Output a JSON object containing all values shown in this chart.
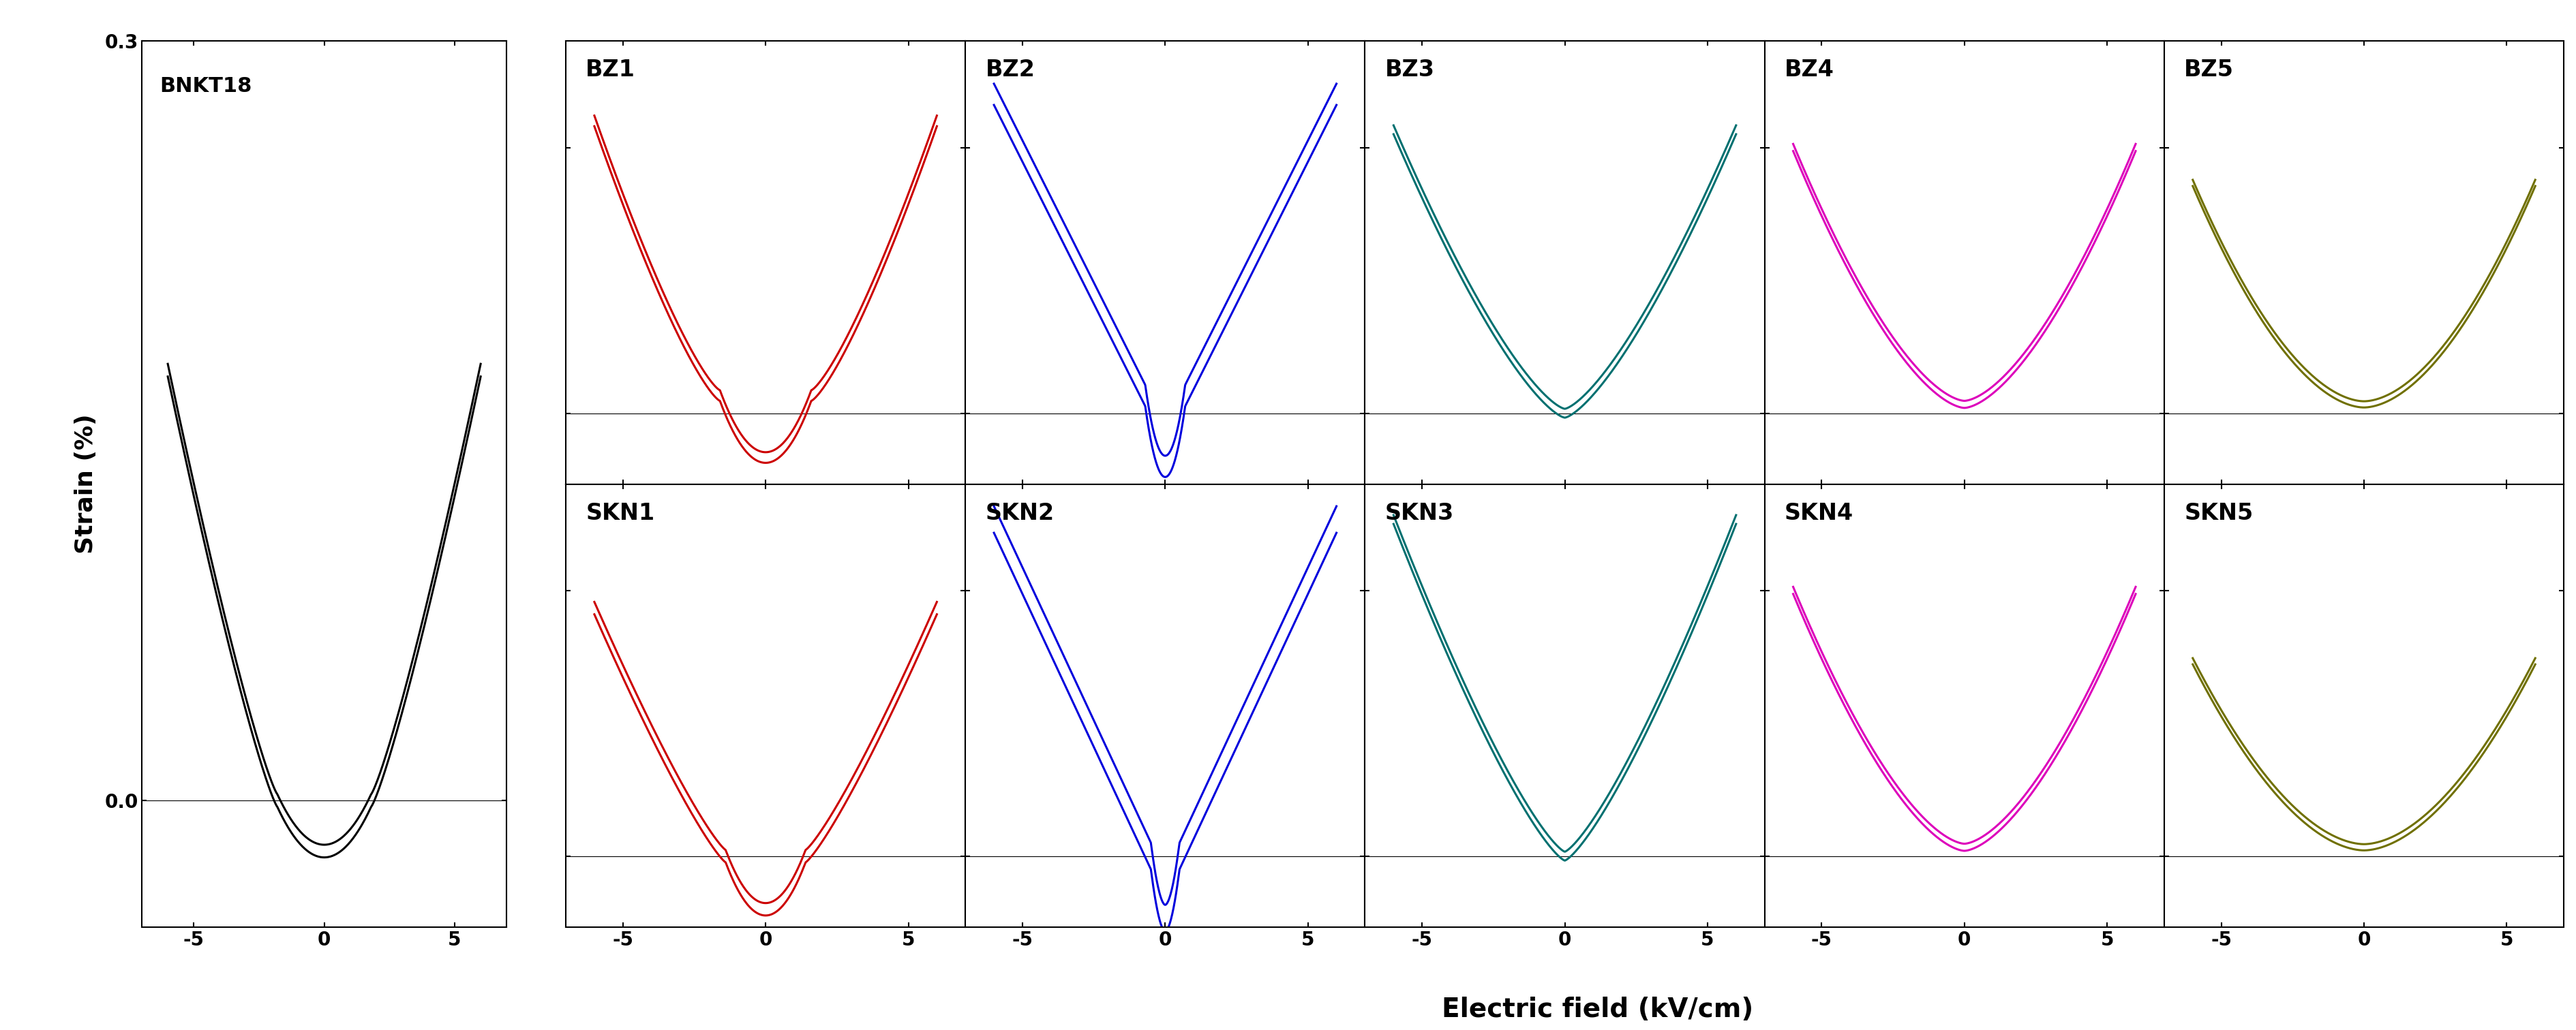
{
  "xlabel": "Electric field (kV/cm)",
  "ylabel": "Strain (%)",
  "ref_label": "BNKT18",
  "ref_color": "#000000",
  "bz_labels": [
    "BZ1",
    "BZ2",
    "BZ3",
    "BZ4",
    "BZ5"
  ],
  "skn_labels": [
    "SKN1",
    "SKN2",
    "SKN3",
    "SKN4",
    "SKN5"
  ],
  "colors": [
    "#cc0000",
    "#0000dd",
    "#007070",
    "#dd00bb",
    "#707000"
  ],
  "xticks": [
    -5,
    0,
    5
  ],
  "yticks_ref": [
    0.0,
    0.3
  ],
  "xlim": [
    -7,
    7
  ],
  "ylim": [
    -0.08,
    0.42
  ],
  "ref_xlim": [
    -7,
    7
  ],
  "ref_ylim": [
    -0.05,
    0.25
  ],
  "linewidth": 2.2
}
